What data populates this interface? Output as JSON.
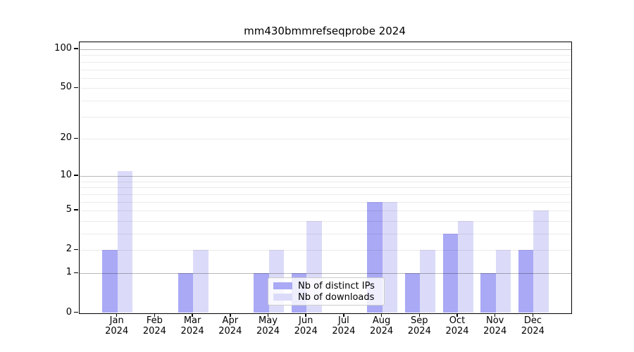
{
  "chart_data": {
    "type": "bar",
    "title": "mm430bmmrefseqprobe 2024",
    "categories": [
      "Jan 2024",
      "Feb 2024",
      "Mar 2024",
      "Apr 2024",
      "May 2024",
      "Jun 2024",
      "Jul 2024",
      "Aug 2024",
      "Sep 2024",
      "Oct 2024",
      "Nov 2024",
      "Dec 2024"
    ],
    "series": [
      {
        "name": "Nb of distinct IPs",
        "color": "#a9a9f5",
        "values": [
          2,
          0,
          1,
          0,
          1,
          1,
          0,
          6,
          1,
          3,
          1,
          2
        ]
      },
      {
        "name": "Nb of downloads",
        "color": "#dbdbf9",
        "values": [
          11,
          0,
          2,
          0,
          2,
          4,
          0,
          6,
          2,
          4,
          2,
          5
        ]
      }
    ],
    "xlabel": "",
    "ylabel": "",
    "yscale": "log1p",
    "y_ticks": [
      0,
      1,
      2,
      5,
      10,
      20,
      50,
      100
    ],
    "y_major_gridlines": [
      1,
      10,
      100
    ],
    "y_minor_gridlines": [
      2,
      3,
      4,
      5,
      6,
      7,
      8,
      9,
      20,
      30,
      40,
      50,
      60,
      70,
      80,
      90
    ],
    "ylim": [
      0,
      113
    ],
    "grid": true,
    "legend": {
      "position": "lower-center",
      "labels": [
        "Nb of distinct IPs",
        "Nb of downloads"
      ]
    },
    "axis_color": "#000000",
    "background_color": "#ffffff"
  }
}
